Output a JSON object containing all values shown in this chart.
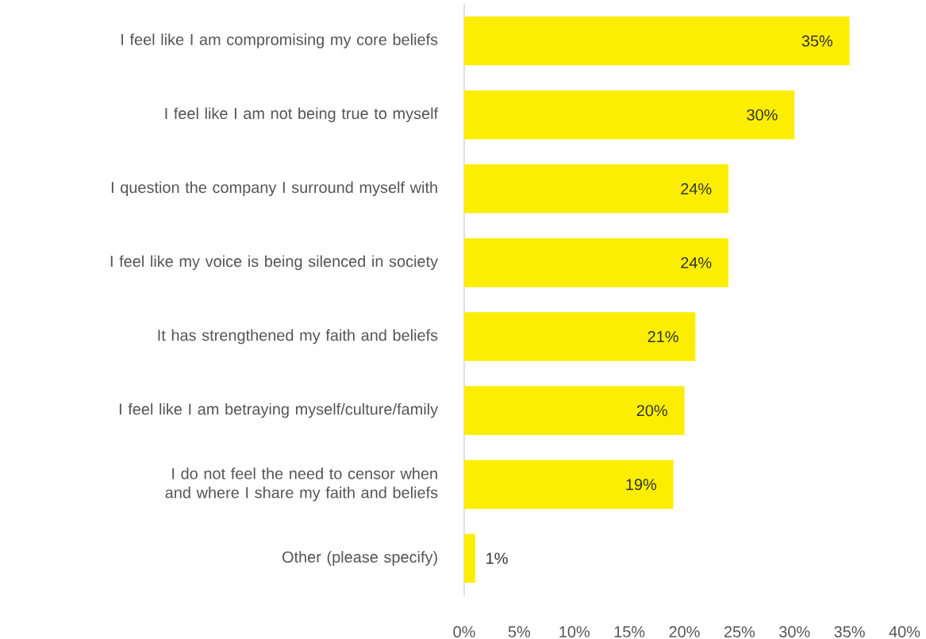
{
  "chart_data": {
    "type": "bar",
    "orientation": "horizontal",
    "categories": [
      "I feel like I am compromising my core beliefs",
      "I feel like I am not being true to myself",
      "I question the company I surround myself with",
      "I feel like my voice is being silenced in society",
      "It has strengthened my faith and beliefs",
      "I feel like I am betraying myself/culture/family",
      "I do not feel the need to censor when and where I share my faith and beliefs",
      "Other (please specify)"
    ],
    "values": [
      35,
      30,
      24,
      24,
      21,
      20,
      19,
      1
    ],
    "value_labels": [
      "35%",
      "30%",
      "24%",
      "24%",
      "21%",
      "20%",
      "19%",
      "1%"
    ],
    "color": "#fcee00",
    "xlim": [
      0,
      40
    ],
    "xticks": [
      {
        "value": 0,
        "label": "0%"
      },
      {
        "value": 5,
        "label": "5%"
      },
      {
        "value": 10,
        "label": "10%"
      },
      {
        "value": 15,
        "label": "15%"
      },
      {
        "value": 20,
        "label": "20%"
      },
      {
        "value": 25,
        "label": "25%"
      },
      {
        "value": 30,
        "label": "30%"
      },
      {
        "value": 35,
        "label": "35%"
      },
      {
        "value": 40,
        "label": "40%"
      }
    ],
    "grid": false
  }
}
